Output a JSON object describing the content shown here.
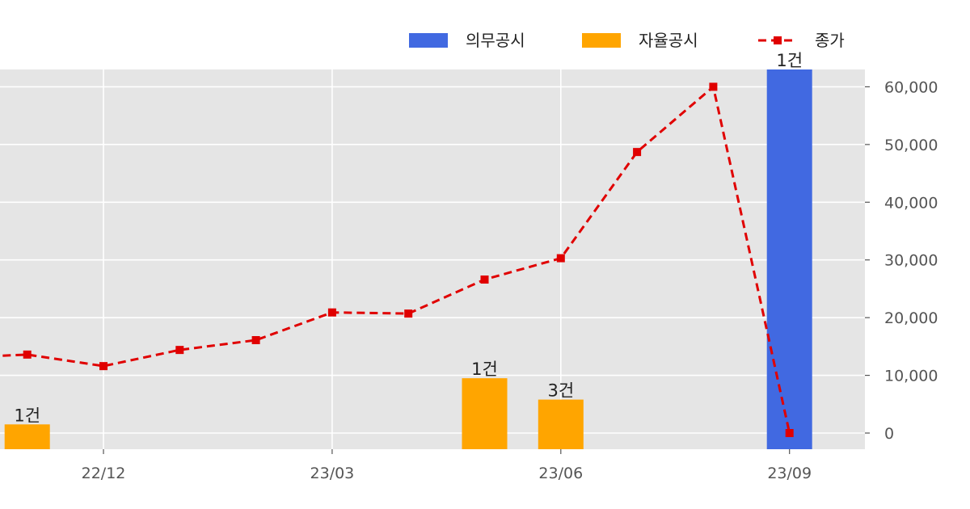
{
  "chart_data": {
    "type": "bar+line",
    "title": "",
    "xlabel": "",
    "ylabel": "",
    "x_ticks": [
      "22/12",
      "23/03",
      "23/06",
      "23/09"
    ],
    "months": [
      "22/11",
      "22/12",
      "23/01",
      "23/02",
      "23/03",
      "23/04",
      "23/05",
      "23/06",
      "23/07",
      "23/08",
      "23/09"
    ],
    "y_ticks": [
      "0",
      "10,000",
      "20,000",
      "30,000",
      "40,000",
      "50,000",
      "60,000"
    ],
    "ylim": [
      -2800,
      63000
    ],
    "grid": true,
    "legend_position": "top-right",
    "series": [
      {
        "name": "의무공시",
        "kind": "bar",
        "color": "#4169e1",
        "bars": [
          {
            "month": "23/09",
            "height": 63000,
            "label": "1건"
          }
        ]
      },
      {
        "name": "자율공시",
        "kind": "bar",
        "color": "#ffa500",
        "bars": [
          {
            "month": "22/11",
            "height": 1500,
            "label": "1건"
          },
          {
            "month": "23/05",
            "height": 9500,
            "label": "1건"
          },
          {
            "month": "23/06",
            "height": 5800,
            "label": "3건"
          }
        ]
      },
      {
        "name": "종가",
        "kind": "line",
        "color": "#e00000",
        "style": "dashed",
        "marker": "square",
        "points": [
          {
            "x": "22/10",
            "y": 13000
          },
          {
            "x": "22/11",
            "y": 13600
          },
          {
            "x": "22/12",
            "y": 11600
          },
          {
            "x": "23/01",
            "y": 14400
          },
          {
            "x": "23/02",
            "y": 16100
          },
          {
            "x": "23/03",
            "y": 20900
          },
          {
            "x": "23/04",
            "y": 20700
          },
          {
            "x": "23/05",
            "y": 26600
          },
          {
            "x": "23/06",
            "y": 30300
          },
          {
            "x": "23/07",
            "y": 48700
          },
          {
            "x": "23/08",
            "y": 60000
          },
          {
            "x": "23/09",
            "y": 0
          }
        ]
      }
    ]
  }
}
